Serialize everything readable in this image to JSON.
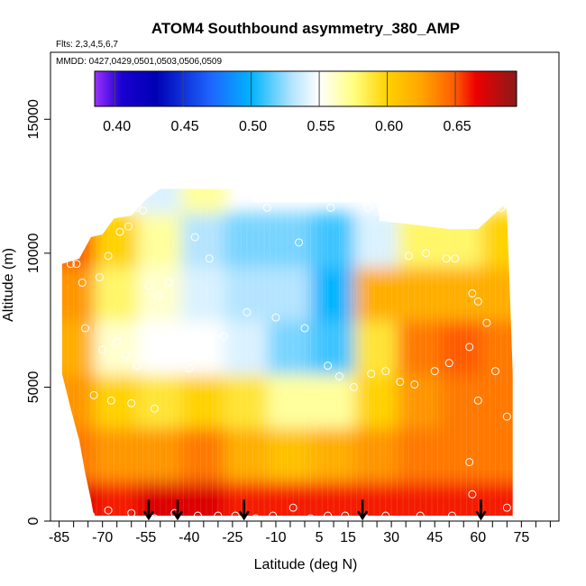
{
  "chart_data": {
    "type": "heatmap",
    "title": "ATOM4 Southbound asymmetry_380_AMP",
    "flights_note": "Flts: 2,3,4,5,6,7",
    "dates_note": "MMDD: 0427,0429,0501,0503,0506,0509",
    "xlabel": "Latitude (deg N)",
    "ylabel": "Altitude (m)",
    "xlim": [
      -88,
      88
    ],
    "ylim": [
      0,
      17500
    ],
    "x_ticks": [
      -85,
      -70,
      -55,
      -40,
      -25,
      -10,
      5,
      15,
      30,
      45,
      60,
      75
    ],
    "x_minor_ticks": [
      -80,
      -75,
      -65,
      -60,
      -50,
      -45,
      -35,
      -30,
      -20,
      -15,
      -5,
      0,
      10,
      20,
      25,
      35,
      40,
      50,
      55,
      65,
      70,
      80,
      85
    ],
    "y_ticks": [
      0,
      5000,
      10000,
      15000
    ],
    "colorbar": {
      "range": [
        0.385,
        0.695
      ],
      "ticks": [
        0.4,
        0.45,
        0.5,
        0.55,
        0.6,
        0.65
      ],
      "tick_labels": [
        "0.40",
        "0.45",
        "0.50",
        "0.55",
        "0.60",
        "0.65"
      ],
      "stops": [
        {
          "value": 0.385,
          "color": "#9b30ff"
        },
        {
          "value": 0.405,
          "color": "#1a00d0"
        },
        {
          "value": 0.43,
          "color": "#0000b4"
        },
        {
          "value": 0.47,
          "color": "#1e64ff"
        },
        {
          "value": 0.5,
          "color": "#00b4ff"
        },
        {
          "value": 0.53,
          "color": "#b4e4ff"
        },
        {
          "value": 0.55,
          "color": "#ffffff"
        },
        {
          "value": 0.575,
          "color": "#ffff82"
        },
        {
          "value": 0.6,
          "color": "#ffd200"
        },
        {
          "value": 0.625,
          "color": "#ffa500"
        },
        {
          "value": 0.65,
          "color": "#ff5a00"
        },
        {
          "value": 0.665,
          "color": "#ee0000"
        },
        {
          "value": 0.695,
          "color": "#8b1a1a"
        }
      ]
    },
    "curtain_top_km": [
      {
        "lat": -84,
        "alt": 9.6
      },
      {
        "lat": -78,
        "alt": 9.8
      },
      {
        "lat": -74,
        "alt": 10.6
      },
      {
        "lat": -70,
        "alt": 10.7
      },
      {
        "lat": -66,
        "alt": 11.3
      },
      {
        "lat": -60,
        "alt": 11.4
      },
      {
        "lat": -55,
        "alt": 12.0
      },
      {
        "lat": -50,
        "alt": 12.4
      },
      {
        "lat": -20,
        "alt": 12.4
      },
      {
        "lat": -18,
        "alt": 11.9
      },
      {
        "lat": 25,
        "alt": 11.9
      },
      {
        "lat": 26,
        "alt": 11.2
      },
      {
        "lat": 35,
        "alt": 11.1
      },
      {
        "lat": 50,
        "alt": 10.9
      },
      {
        "lat": 60,
        "alt": 10.9
      },
      {
        "lat": 64,
        "alt": 11.3
      },
      {
        "lat": 69,
        "alt": 11.8
      },
      {
        "lat": 70,
        "alt": 11.6
      },
      {
        "lat": 72,
        "alt": 5.5
      },
      {
        "lat": 72,
        "alt": 2.5
      }
    ],
    "curtain_bottom_km": [
      {
        "lat": -84,
        "alt": 5.5
      },
      {
        "lat": -81,
        "alt": 4.2
      },
      {
        "lat": -78,
        "alt": 3.0
      },
      {
        "lat": -76,
        "alt": 1.8
      },
      {
        "lat": -74,
        "alt": 0.8
      },
      {
        "lat": -73,
        "alt": 0.2
      },
      {
        "lat": 72,
        "alt": 0.2
      }
    ],
    "cells": [
      {
        "lat": -80,
        "alt": 0.5,
        "value": 0.67
      },
      {
        "lat": -80,
        "alt": 2.5,
        "value": 0.64
      },
      {
        "lat": -80,
        "alt": 4.5,
        "value": 0.63
      },
      {
        "lat": -80,
        "alt": 6.5,
        "value": 0.62
      },
      {
        "lat": -80,
        "alt": 8.5,
        "value": 0.63
      },
      {
        "lat": -80,
        "alt": 10.5,
        "value": 0.65
      },
      {
        "lat": -65,
        "alt": 0.5,
        "value": 0.66
      },
      {
        "lat": -65,
        "alt": 2.5,
        "value": 0.63
      },
      {
        "lat": -65,
        "alt": 4.5,
        "value": 0.6
      },
      {
        "lat": -65,
        "alt": 6.5,
        "value": 0.56
      },
      {
        "lat": -65,
        "alt": 8.5,
        "value": 0.58
      },
      {
        "lat": -65,
        "alt": 10.5,
        "value": 0.6
      },
      {
        "lat": -50,
        "alt": 0.5,
        "value": 0.67
      },
      {
        "lat": -50,
        "alt": 2.5,
        "value": 0.63
      },
      {
        "lat": -50,
        "alt": 4.5,
        "value": 0.59
      },
      {
        "lat": -50,
        "alt": 6.5,
        "value": 0.55
      },
      {
        "lat": -50,
        "alt": 8.5,
        "value": 0.56
      },
      {
        "lat": -50,
        "alt": 10.5,
        "value": 0.57
      },
      {
        "lat": -50,
        "alt": 12.5,
        "value": 0.54
      },
      {
        "lat": -35,
        "alt": 0.5,
        "value": 0.67
      },
      {
        "lat": -35,
        "alt": 2.5,
        "value": 0.64
      },
      {
        "lat": -35,
        "alt": 4.5,
        "value": 0.6
      },
      {
        "lat": -35,
        "alt": 6.5,
        "value": 0.55
      },
      {
        "lat": -35,
        "alt": 8.5,
        "value": 0.54
      },
      {
        "lat": -35,
        "alt": 10.5,
        "value": 0.53
      },
      {
        "lat": -35,
        "alt": 12.5,
        "value": 0.57
      },
      {
        "lat": -20,
        "alt": 0.5,
        "value": 0.66
      },
      {
        "lat": -20,
        "alt": 2.5,
        "value": 0.62
      },
      {
        "lat": -20,
        "alt": 4.5,
        "value": 0.59
      },
      {
        "lat": -20,
        "alt": 6.5,
        "value": 0.54
      },
      {
        "lat": -20,
        "alt": 8.5,
        "value": 0.53
      },
      {
        "lat": -20,
        "alt": 10.5,
        "value": 0.52
      },
      {
        "lat": -5,
        "alt": 0.5,
        "value": 0.66
      },
      {
        "lat": -5,
        "alt": 2.5,
        "value": 0.61
      },
      {
        "lat": -5,
        "alt": 4.5,
        "value": 0.57
      },
      {
        "lat": -5,
        "alt": 6.5,
        "value": 0.52
      },
      {
        "lat": -5,
        "alt": 8.5,
        "value": 0.53
      },
      {
        "lat": -5,
        "alt": 10.5,
        "value": 0.52
      },
      {
        "lat": 10,
        "alt": 0.5,
        "value": 0.66
      },
      {
        "lat": 10,
        "alt": 2.5,
        "value": 0.62
      },
      {
        "lat": 10,
        "alt": 4.5,
        "value": 0.57
      },
      {
        "lat": 10,
        "alt": 6.5,
        "value": 0.51
      },
      {
        "lat": 10,
        "alt": 8.5,
        "value": 0.5
      },
      {
        "lat": 10,
        "alt": 10.5,
        "value": 0.51
      },
      {
        "lat": 25,
        "alt": 0.5,
        "value": 0.66
      },
      {
        "lat": 25,
        "alt": 2.5,
        "value": 0.63
      },
      {
        "lat": 25,
        "alt": 4.5,
        "value": 0.6
      },
      {
        "lat": 25,
        "alt": 6.5,
        "value": 0.59
      },
      {
        "lat": 25,
        "alt": 8.5,
        "value": 0.62
      },
      {
        "lat": 25,
        "alt": 10.5,
        "value": 0.54
      },
      {
        "lat": 40,
        "alt": 0.5,
        "value": 0.66
      },
      {
        "lat": 40,
        "alt": 2.5,
        "value": 0.64
      },
      {
        "lat": 40,
        "alt": 4.5,
        "value": 0.63
      },
      {
        "lat": 40,
        "alt": 6.5,
        "value": 0.64
      },
      {
        "lat": 40,
        "alt": 8.5,
        "value": 0.62
      },
      {
        "lat": 40,
        "alt": 10.5,
        "value": 0.58
      },
      {
        "lat": 55,
        "alt": 0.5,
        "value": 0.66
      },
      {
        "lat": 55,
        "alt": 2.5,
        "value": 0.64
      },
      {
        "lat": 55,
        "alt": 4.5,
        "value": 0.64
      },
      {
        "lat": 55,
        "alt": 6.5,
        "value": 0.65
      },
      {
        "lat": 55,
        "alt": 8.5,
        "value": 0.62
      },
      {
        "lat": 55,
        "alt": 10.5,
        "value": 0.58
      },
      {
        "lat": 68,
        "alt": 0.5,
        "value": 0.66
      },
      {
        "lat": 68,
        "alt": 2.5,
        "value": 0.64
      },
      {
        "lat": 68,
        "alt": 4.5,
        "value": 0.64
      },
      {
        "lat": 68,
        "alt": 6.5,
        "value": 0.64
      },
      {
        "lat": 68,
        "alt": 8.5,
        "value": 0.62
      },
      {
        "lat": 68,
        "alt": 10.5,
        "value": 0.6
      }
    ],
    "profile_points": [
      {
        "lat": -81,
        "alt": 9.6
      },
      {
        "lat": -79,
        "alt": 9.6
      },
      {
        "lat": -77,
        "alt": 8.9
      },
      {
        "lat": -71,
        "alt": 9.1
      },
      {
        "lat": -68,
        "alt": 9.9
      },
      {
        "lat": -64,
        "alt": 10.8
      },
      {
        "lat": -61,
        "alt": 11.0
      },
      {
        "lat": -58,
        "alt": 11.7
      },
      {
        "lat": -56,
        "alt": 11.6
      },
      {
        "lat": -54,
        "alt": 8.8
      },
      {
        "lat": -51,
        "alt": 8.4
      },
      {
        "lat": -47,
        "alt": 8.9
      },
      {
        "lat": -38,
        "alt": 10.6
      },
      {
        "lat": -33,
        "alt": 9.8
      },
      {
        "lat": -22,
        "alt": 12.3
      },
      {
        "lat": -13,
        "alt": 11.7
      },
      {
        "lat": -2,
        "alt": 10.4
      },
      {
        "lat": 9,
        "alt": 11.7
      },
      {
        "lat": 22,
        "alt": 11.7
      },
      {
        "lat": 36,
        "alt": 9.9
      },
      {
        "lat": 42,
        "alt": 10.0
      },
      {
        "lat": 49,
        "alt": 9.8
      },
      {
        "lat": 52,
        "alt": 9.8
      },
      {
        "lat": 58,
        "alt": 8.5
      },
      {
        "lat": 60,
        "alt": 8.2
      },
      {
        "lat": 63,
        "alt": 7.4
      },
      {
        "lat": 68,
        "alt": 11.7
      },
      {
        "lat": -76,
        "alt": 7.2
      },
      {
        "lat": -70,
        "alt": 6.4
      },
      {
        "lat": -65,
        "alt": 6.7
      },
      {
        "lat": -62,
        "alt": 6.2
      },
      {
        "lat": -58,
        "alt": 5.8
      },
      {
        "lat": -55,
        "alt": 6.5
      },
      {
        "lat": -50,
        "alt": 6.6
      },
      {
        "lat": -45,
        "alt": 6.2
      },
      {
        "lat": -40,
        "alt": 5.7
      },
      {
        "lat": -35,
        "alt": 6.5
      },
      {
        "lat": -28,
        "alt": 6.9
      },
      {
        "lat": -20,
        "alt": 7.8
      },
      {
        "lat": -10,
        "alt": 7.6
      },
      {
        "lat": 0,
        "alt": 7.2
      },
      {
        "lat": 8,
        "alt": 5.8
      },
      {
        "lat": 12,
        "alt": 5.4
      },
      {
        "lat": 17,
        "alt": 5.0
      },
      {
        "lat": 23,
        "alt": 5.5
      },
      {
        "lat": 28,
        "alt": 5.6
      },
      {
        "lat": 33,
        "alt": 5.2
      },
      {
        "lat": 38,
        "alt": 5.1
      },
      {
        "lat": 45,
        "alt": 5.6
      },
      {
        "lat": 50,
        "alt": 5.9
      },
      {
        "lat": 57,
        "alt": 6.5
      },
      {
        "lat": 66,
        "alt": 5.6
      },
      {
        "lat": 70,
        "alt": 3.9
      },
      {
        "lat": -73,
        "alt": 4.7
      },
      {
        "lat": -67,
        "alt": 4.5
      },
      {
        "lat": -60,
        "alt": 4.4
      },
      {
        "lat": -52,
        "alt": 4.2
      },
      {
        "lat": 60,
        "alt": 4.5
      },
      {
        "lat": 57,
        "alt": 2.2
      },
      {
        "lat": 58,
        "alt": 1.0
      },
      {
        "lat": -74,
        "alt": 0.2
      },
      {
        "lat": -68,
        "alt": 0.4
      },
      {
        "lat": -60,
        "alt": 0.3
      },
      {
        "lat": -52,
        "alt": 0.1
      },
      {
        "lat": -45,
        "alt": 0.3
      },
      {
        "lat": -37,
        "alt": 0.2
      },
      {
        "lat": -30,
        "alt": 0.2
      },
      {
        "lat": -24,
        "alt": 0.2
      },
      {
        "lat": -17,
        "alt": 0.1
      },
      {
        "lat": -11,
        "alt": 0.2
      },
      {
        "lat": -4,
        "alt": 0.5
      },
      {
        "lat": 2,
        "alt": 0.1
      },
      {
        "lat": 8,
        "alt": 0.2
      },
      {
        "lat": 14,
        "alt": 0.2
      },
      {
        "lat": 21,
        "alt": 0.1
      },
      {
        "lat": 28,
        "alt": 0.2
      },
      {
        "lat": 40,
        "alt": 0.2
      },
      {
        "lat": 51,
        "alt": 0.2
      },
      {
        "lat": 70,
        "alt": 0.5
      }
    ],
    "arrows": [
      {
        "lat": -54,
        "alt_top": 0.8,
        "alt_bottom": 0.1
      },
      {
        "lat": -44,
        "alt_top": 0.8,
        "alt_bottom": 0.1
      },
      {
        "lat": -21,
        "alt_top": 0.8,
        "alt_bottom": 0.1
      },
      {
        "lat": 20,
        "alt_top": 0.8,
        "alt_bottom": 0.1
      },
      {
        "lat": 61,
        "alt_top": 0.8,
        "alt_bottom": 0.1
      }
    ]
  }
}
